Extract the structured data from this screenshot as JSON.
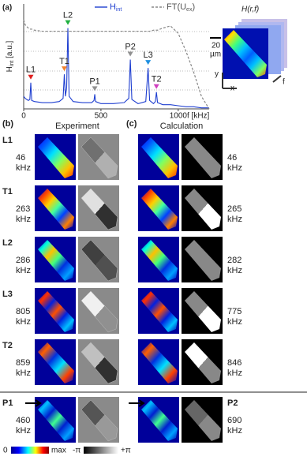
{
  "chart_data": {
    "type": "line",
    "panel_label": "(a)",
    "x": [
      0,
      10,
      30,
      40,
      46,
      52,
      70,
      120,
      180,
      230,
      255,
      263,
      270,
      278,
      286,
      294,
      320,
      380,
      440,
      455,
      460,
      465,
      500,
      580,
      650,
      680,
      690,
      700,
      740,
      790,
      805,
      815,
      840,
      852,
      859,
      866,
      900,
      950,
      1000,
      1050,
      1100,
      1150,
      1200
    ],
    "xlim": [
      0,
      1200
    ],
    "xticks": [
      0,
      500,
      1000
    ],
    "xlabel": "f [kHz]",
    "ylabel": {
      "main": "H",
      "sub": "int",
      "unit": " [a.u.]"
    },
    "ylim": [
      0,
      1
    ],
    "series": [
      {
        "name": "H",
        "name_sub": "int",
        "color": "#1f3fd0",
        "dash": false,
        "values": [
          0.12,
          0.1,
          0.08,
          0.09,
          0.25,
          0.08,
          0.07,
          0.06,
          0.06,
          0.07,
          0.1,
          0.33,
          0.12,
          0.2,
          0.77,
          0.12,
          0.07,
          0.06,
          0.06,
          0.08,
          0.14,
          0.07,
          0.05,
          0.05,
          0.06,
          0.1,
          0.47,
          0.09,
          0.05,
          0.07,
          0.39,
          0.08,
          0.05,
          0.07,
          0.16,
          0.06,
          0.04,
          0.04,
          0.03,
          0.02,
          0.02,
          0.01,
          0.01
        ]
      },
      {
        "name": "FT(U",
        "name_sub": "ex",
        "name_end": ")",
        "color": "#888888",
        "dash": true,
        "values": [
          0.85,
          0.8,
          0.77,
          0.76,
          0.76,
          0.76,
          0.75,
          0.74,
          0.74,
          0.74,
          0.74,
          0.74,
          0.74,
          0.74,
          0.74,
          0.74,
          0.74,
          0.74,
          0.74,
          0.74,
          0.74,
          0.74,
          0.74,
          0.74,
          0.74,
          0.74,
          0.74,
          0.74,
          0.74,
          0.74,
          0.74,
          0.74,
          0.75,
          0.75,
          0.75,
          0.75,
          0.77,
          0.79,
          0.72,
          0.55,
          0.35,
          0.12,
          0.0
        ]
      }
    ],
    "peaks": [
      {
        "label": "L1",
        "x": 46,
        "color": "#e02020"
      },
      {
        "label": "T1",
        "x": 263,
        "color": "#f08030"
      },
      {
        "label": "L2",
        "x": 286,
        "color": "#20b040"
      },
      {
        "label": "P1",
        "x": 460,
        "color": "#909090"
      },
      {
        "label": "P2",
        "x": 690,
        "color": "#909090"
      },
      {
        "label": "L3",
        "x": 805,
        "color": "#2090e0"
      },
      {
        "label": "T2",
        "x": 859,
        "color": "#d040c0"
      }
    ],
    "legend": "top"
  },
  "inset": {
    "title": "H(r,f)",
    "scale": "20",
    "scale_unit": "µm",
    "axis_y": "y",
    "axis_x": "x",
    "axis_f": "f"
  },
  "panel_b": {
    "label": "(b)",
    "header": "Experiment",
    "freq_unit": "kHz",
    "rows": [
      {
        "mode": "L1",
        "freq": 46
      },
      {
        "mode": "T1",
        "freq": 263
      },
      {
        "mode": "L2",
        "freq": 286
      },
      {
        "mode": "L3",
        "freq": 805
      },
      {
        "mode": "T2",
        "freq": 859
      },
      {
        "mode": "P1",
        "freq": 460
      }
    ]
  },
  "panel_c": {
    "label": "(c)",
    "header": "Calculation",
    "freq_unit": "kHz",
    "rows": [
      {
        "freq": 46
      },
      {
        "freq": 265
      },
      {
        "freq": 282
      },
      {
        "freq": 775
      },
      {
        "freq": 846
      },
      {
        "mode": "P2",
        "freq": 690
      }
    ]
  },
  "colorbar": {
    "amp_min": "0",
    "amp_max": "max",
    "phase_min": "-π",
    "phase_max": "+π"
  }
}
